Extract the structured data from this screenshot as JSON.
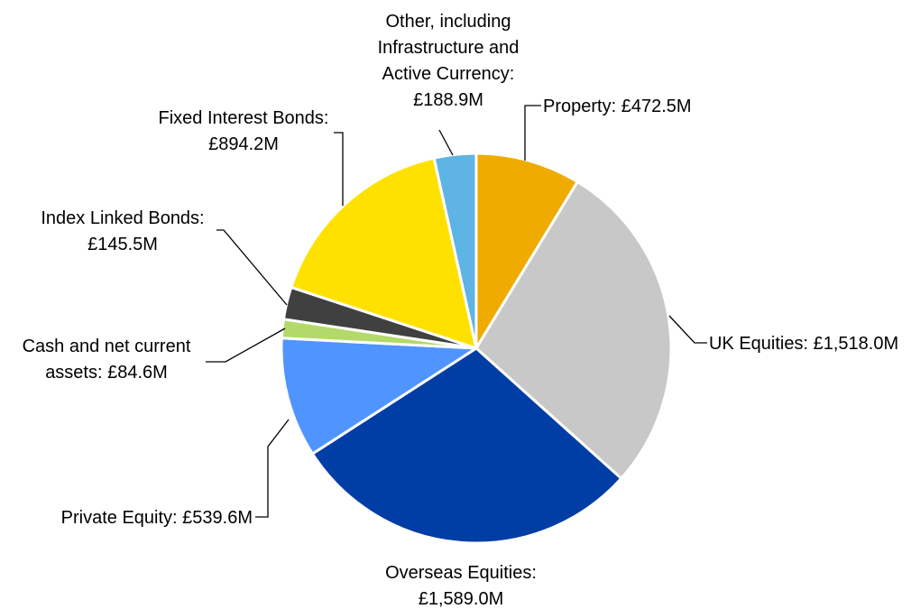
{
  "chart_data": {
    "type": "pie",
    "title": "",
    "start_angle_deg": 0,
    "direction": "clockwise",
    "slices": [
      {
        "key": "property",
        "label_lines": [
          "Property: £472.5M"
        ],
        "value": 472.5,
        "color": "#F0AB00"
      },
      {
        "key": "uk-equities",
        "label_lines": [
          "UK Equities: £1,518.0M"
        ],
        "value": 1518.0,
        "color": "#C8C8C8"
      },
      {
        "key": "overseas-equities",
        "label_lines": [
          "Overseas Equities:",
          "£1,589.0M"
        ],
        "value": 1589.0,
        "color": "#003DA5"
      },
      {
        "key": "private-equity",
        "label_lines": [
          "Private Equity: £539.6M"
        ],
        "value": 539.6,
        "color": "#5094FF"
      },
      {
        "key": "cash",
        "label_lines": [
          "Cash and net current",
          "assets: £84.6M"
        ],
        "value": 84.6,
        "color": "#B3D96B"
      },
      {
        "key": "index-linked-bonds",
        "label_lines": [
          "Index Linked Bonds:",
          "£145.5M"
        ],
        "value": 145.5,
        "color": "#404040"
      },
      {
        "key": "fixed-interest-bonds",
        "label_lines": [
          "Fixed Interest Bonds:",
          "£894.2M"
        ],
        "value": 894.2,
        "color": "#FFE100"
      },
      {
        "key": "other",
        "label_lines": [
          "Other, including",
          "Infrastructure and",
          "Active Currency:",
          "£188.9M"
        ],
        "value": 188.9,
        "color": "#5EB4E4"
      }
    ]
  }
}
